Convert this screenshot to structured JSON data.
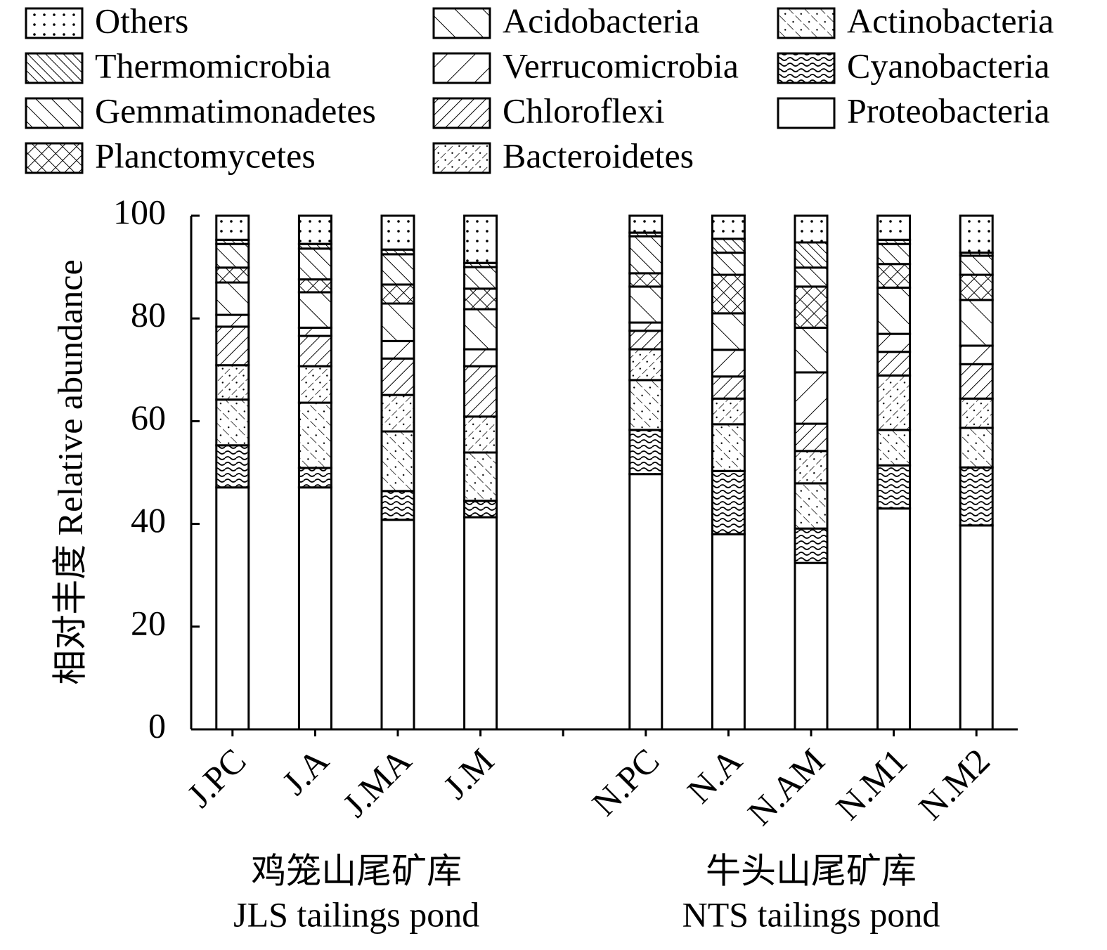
{
  "chart_data": {
    "type": "stacked-bar",
    "y_label": "相对丰度 Relative abundance",
    "categories": [
      "J.PC",
      "J.A",
      "J.MA",
      "J.M",
      null,
      "N.PC",
      "N.A",
      "N.AM",
      "N.M1",
      "N.M2"
    ],
    "groups": [
      [
        "鸡笼山尾矿库",
        "JLS tailings pond"
      ],
      [
        "牛头山尾矿库",
        "NTS tailings pond"
      ]
    ],
    "ylim": [
      0,
      100
    ],
    "yticks": [
      0,
      20,
      40,
      60,
      80,
      100
    ],
    "grid": false,
    "series": [
      {
        "name": "Proteobacteria",
        "color": "#000000",
        "pattern": "none",
        "values": [
          47.1,
          47.1,
          40.8,
          41.3,
          null,
          49.7,
          38.0,
          32.4,
          43.0,
          39.7
        ]
      },
      {
        "name": "Cyanobacteria",
        "color": "#000000",
        "pattern": "waves",
        "values": [
          8.2,
          3.8,
          5.6,
          3.2,
          null,
          8.6,
          12.3,
          6.7,
          8.4,
          11.3
        ]
      },
      {
        "name": "Actinobacteria",
        "color": "#000000",
        "pattern": "back-dots",
        "values": [
          8.9,
          12.7,
          11.6,
          9.4,
          null,
          9.7,
          9.1,
          8.8,
          6.9,
          7.7
        ]
      },
      {
        "name": "Bacteroidetes",
        "color": "#000000",
        "pattern": "slash-dots",
        "values": [
          6.7,
          7.1,
          7.1,
          7.0,
          null,
          6.0,
          5.0,
          6.3,
          10.6,
          5.7
        ]
      },
      {
        "name": "Chloroflexi",
        "color": "#000000",
        "pattern": "slash",
        "values": [
          7.5,
          5.9,
          7.1,
          9.8,
          null,
          3.6,
          4.3,
          5.3,
          4.6,
          6.7
        ]
      },
      {
        "name": "Verrucomicrobia",
        "color": "#000000",
        "pattern": "slash-sparse",
        "values": [
          2.3,
          1.6,
          3.4,
          3.3,
          null,
          1.6,
          5.2,
          10.0,
          3.5,
          3.6
        ]
      },
      {
        "name": "Acidobacteria",
        "color": "#000000",
        "pattern": "back-sparse",
        "values": [
          6.3,
          6.9,
          7.3,
          7.8,
          null,
          7.0,
          7.1,
          8.7,
          9.0,
          8.9
        ]
      },
      {
        "name": "Planctomycetes",
        "color": "#000000",
        "pattern": "cross",
        "values": [
          2.9,
          2.5,
          3.7,
          4.0,
          null,
          2.6,
          7.5,
          8.0,
          4.6,
          4.9
        ]
      },
      {
        "name": "Gemmatimonadetes",
        "color": "#000000",
        "pattern": "back",
        "values": [
          4.6,
          6.0,
          5.9,
          4.2,
          null,
          7.2,
          4.3,
          3.7,
          3.9,
          3.7
        ]
      },
      {
        "name": "Thermomicrobia",
        "color": "#000000",
        "pattern": "back-dense",
        "values": [
          0.8,
          0.9,
          0.9,
          0.8,
          null,
          0.7,
          2.7,
          4.9,
          0.8,
          0.6
        ]
      },
      {
        "name": "Others",
        "color": "#000000",
        "pattern": "dots",
        "values": [
          4.7,
          5.5,
          6.6,
          9.2,
          null,
          3.3,
          4.5,
          5.2,
          4.7,
          7.2
        ]
      }
    ]
  }
}
